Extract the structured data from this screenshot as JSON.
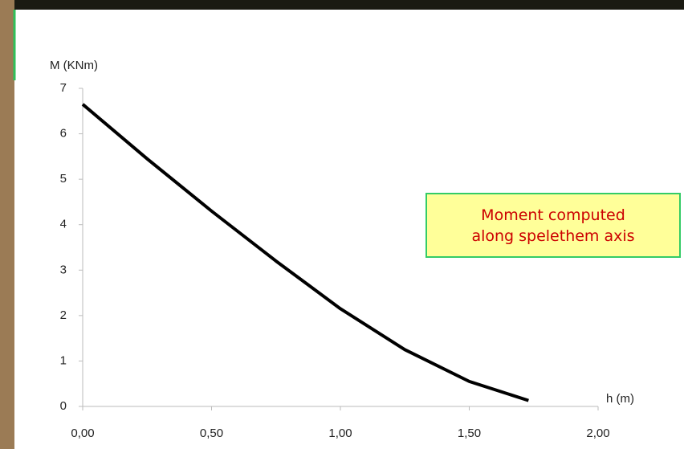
{
  "chart_data": {
    "type": "line",
    "y_label": "M (KNm)",
    "x_label": "h (m)",
    "annotation": [
      "Moment computed",
      "along spelethem axis"
    ],
    "x": [
      0,
      0.25,
      0.5,
      0.75,
      1.0,
      1.25,
      1.5,
      1.73
    ],
    "values": [
      6.65,
      5.45,
      4.3,
      3.2,
      2.15,
      1.25,
      0.55,
      0.13
    ],
    "color": "#000000",
    "xlim": [
      0,
      2
    ],
    "ylim": [
      0,
      7
    ],
    "xticks": [
      {
        "value": 0,
        "label": "0,00"
      },
      {
        "value": 0.5,
        "label": "0,50"
      },
      {
        "value": 1,
        "label": "1,00"
      },
      {
        "value": 1.5,
        "label": "1,50"
      },
      {
        "value": 2,
        "label": "2,00"
      }
    ],
    "yticks": [
      0,
      1,
      2,
      3,
      4,
      5,
      6,
      7
    ]
  }
}
